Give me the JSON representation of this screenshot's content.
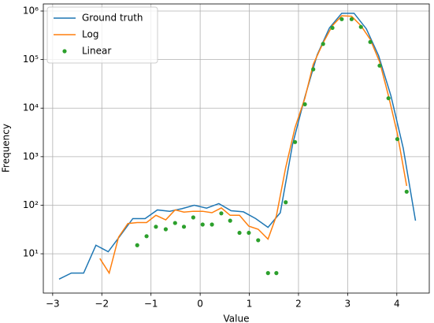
{
  "chart_data": {
    "type": "line",
    "xlabel": "Value",
    "ylabel": "Frequency",
    "log_y": true,
    "grid": true,
    "legend": "upper left",
    "xlim": [
      -3.19,
      4.66
    ],
    "ylim": [
      1.55,
      1400000
    ],
    "xticks": [
      {
        "value": -3,
        "label": "−3"
      },
      {
        "value": -2,
        "label": "−2"
      },
      {
        "value": -1,
        "label": "−1"
      },
      0,
      1,
      2,
      3,
      4
    ],
    "yticks": [
      {
        "value": 10,
        "label": "10¹"
      },
      {
        "value": 100,
        "label": "10²"
      },
      {
        "value": 1000,
        "label": "10³"
      },
      {
        "value": 10000,
        "label": "10⁴"
      },
      {
        "value": 100000,
        "label": "10⁵"
      },
      {
        "value": 1000000,
        "label": "10⁶"
      }
    ],
    "series": [
      {
        "name": "Ground truth",
        "color": "#1f77b4",
        "kind": "line",
        "x": [
          -2.87,
          -2.62,
          -2.37,
          -2.12,
          -1.87,
          -1.62,
          -1.37,
          -1.12,
          -0.87,
          -0.62,
          -0.37,
          -0.12,
          0.13,
          0.38,
          0.63,
          0.88,
          1.13,
          1.38,
          1.63,
          1.88,
          2.13,
          2.38,
          2.63,
          2.88,
          3.13,
          3.38,
          3.63,
          3.88,
          4.13,
          4.38
        ],
        "values": [
          3,
          4,
          4,
          15,
          11,
          24,
          53,
          53,
          80,
          75,
          85,
          100,
          87,
          108,
          77,
          73,
          53,
          35,
          70,
          1800,
          17000,
          125000,
          450000,
          900000,
          900000,
          430000,
          120000,
          18000,
          1500,
          48
        ]
      },
      {
        "name": "Log",
        "color": "#ff7f0e",
        "kind": "line",
        "x": [
          -2.04,
          -1.85,
          -1.66,
          -1.47,
          -1.28,
          -1.09,
          -0.9,
          -0.7,
          -0.51,
          -0.33,
          -0.14,
          0.05,
          0.24,
          0.43,
          0.61,
          0.8,
          0.99,
          1.18,
          1.38,
          1.55,
          1.74,
          1.93,
          2.13,
          2.3,
          2.5,
          2.69,
          2.88,
          3.08,
          3.27,
          3.46,
          3.65,
          3.83,
          4.01,
          4.2
        ],
        "values": [
          8,
          4,
          22,
          42,
          44,
          44,
          62,
          50,
          80,
          72,
          75,
          75,
          70,
          88,
          62,
          62,
          37,
          32,
          20,
          60,
          600,
          4000,
          16000,
          80000,
          220000,
          500000,
          800000,
          780000,
          500000,
          260000,
          90000,
          18000,
          3000,
          250
        ]
      },
      {
        "name": "Linear",
        "color": "#2ca02c",
        "kind": "points",
        "x": [
          -1.28,
          -1.09,
          -0.9,
          -0.7,
          -0.51,
          -0.33,
          -0.14,
          0.05,
          0.24,
          0.43,
          0.61,
          0.8,
          0.99,
          1.18,
          1.38,
          1.55,
          1.74,
          1.93,
          2.13,
          2.3,
          2.5,
          2.69,
          2.88,
          3.08,
          3.27,
          3.46,
          3.65,
          3.83,
          4.01,
          4.2
        ],
        "values": [
          15,
          23,
          36,
          32,
          43,
          36,
          56,
          40,
          40,
          68,
          48,
          27,
          27,
          19,
          4,
          4,
          115,
          2000,
          12000,
          63000,
          210000,
          450000,
          680000,
          680000,
          470000,
          230000,
          75000,
          16000,
          2300,
          190
        ]
      }
    ]
  }
}
